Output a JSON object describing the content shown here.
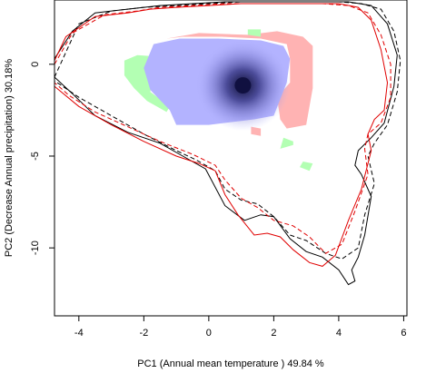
{
  "chart_data": {
    "type": "area",
    "title": "",
    "xlabel": "PC1 (Annual mean temperature ) 49.84 %",
    "ylabel": "PC2 (Decrease Annual precipitation) 30.18%",
    "xlim": [
      -4.75,
      6.1
    ],
    "ylim": [
      -13.7,
      3.5
    ],
    "x_ticks": [
      -4,
      -2,
      0,
      2,
      4,
      6
    ],
    "y_ticks": [
      0,
      -5,
      -10
    ],
    "x_tick_labels": [
      "-4",
      "-2",
      "0",
      "2",
      "4",
      "6"
    ],
    "y_tick_labels": [
      "0",
      "-5",
      "-10"
    ],
    "grid": false,
    "legend": "none",
    "colors": {
      "niche_overlap": "#b3b3ff",
      "niche_stable_core": "#101040",
      "species1_only": "#ffb3b3",
      "species2_only": "#b3ffb3",
      "env_contour_1": "#000000",
      "env_contour_2": "#e00000"
    },
    "regions": {
      "niche_overlap": [
        [
          -1.7,
          1.1
        ],
        [
          -0.9,
          1.4
        ],
        [
          0.3,
          1.4
        ],
        [
          1.6,
          1.3
        ],
        [
          2.3,
          1.0
        ],
        [
          2.5,
          0.3
        ],
        [
          2.4,
          -1.0
        ],
        [
          2.0,
          -2.8
        ],
        [
          1.4,
          -3.0
        ],
        [
          0.0,
          -3.3
        ],
        [
          -1.0,
          -3.3
        ],
        [
          -1.2,
          -2.5
        ],
        [
          -1.8,
          -1.4
        ],
        [
          -2.0,
          -0.2
        ]
      ],
      "species1_only": [
        [
          -1.3,
          1.4
        ],
        [
          -0.3,
          1.7
        ],
        [
          1.2,
          1.6
        ],
        [
          2.1,
          1.8
        ],
        [
          2.9,
          1.5
        ],
        [
          3.2,
          1.0
        ],
        [
          3.2,
          -1.3
        ],
        [
          3.0,
          -3.3
        ],
        [
          2.4,
          -3.5
        ],
        [
          2.2,
          -3.0
        ],
        [
          2.1,
          -1.8
        ],
        [
          2.5,
          -1.0
        ],
        [
          2.5,
          0.3
        ],
        [
          2.4,
          1.1
        ],
        [
          1.6,
          1.4
        ],
        [
          0.4,
          1.5
        ],
        [
          -0.8,
          1.5
        ]
      ],
      "species2_only": [
        [
          -2.6,
          0.2
        ],
        [
          -2.2,
          0.5
        ],
        [
          -1.4,
          0.4
        ],
        [
          -1.7,
          0.2
        ],
        [
          -1.8,
          -1.5
        ],
        [
          -1.2,
          -2.3
        ],
        [
          -1.3,
          -2.6
        ],
        [
          -1.9,
          -2.0
        ],
        [
          -2.3,
          -1.3
        ],
        [
          -2.6,
          -0.6
        ]
      ],
      "species2_patch_a": [
        [
          2.3,
          -4.0
        ],
        [
          2.6,
          -4.2
        ],
        [
          2.6,
          -4.4
        ],
        [
          2.2,
          -4.6
        ]
      ],
      "species2_patch_b": [
        [
          1.6,
          1.5
        ],
        [
          1.6,
          1.9
        ],
        [
          1.2,
          1.9
        ],
        [
          1.2,
          1.6
        ]
      ],
      "species2_patch_c": [
        [
          2.9,
          -5.3
        ],
        [
          3.2,
          -5.4
        ],
        [
          3.1,
          -5.8
        ],
        [
          2.8,
          -5.6
        ]
      ],
      "species1_patch_a": [
        [
          1.3,
          -3.4
        ],
        [
          1.6,
          -3.5
        ],
        [
          1.6,
          -3.9
        ],
        [
          1.3,
          -3.8
        ]
      ]
    },
    "stable_core_center": [
      1.05,
      -1.15
    ],
    "series": [
      {
        "color": "#000000",
        "dash": "solid",
        "x": [
          -4.75,
          -4.2,
          -3.5,
          -2.5,
          -1.5,
          -0.5,
          0.5,
          1.5,
          2.5,
          3.5,
          4.3,
          5.0,
          5.5,
          5.8,
          5.7,
          5.4,
          5.0,
          4.6,
          4.5,
          4.7,
          5.0,
          4.8,
          4.6,
          4.4,
          4.5,
          4.3,
          4.0,
          3.5,
          3.0,
          2.5,
          2.0,
          1.6,
          1.1,
          0.5,
          -0.1,
          -0.7,
          -1.5,
          -2.5,
          -3.5,
          -4.2,
          -4.75
        ],
        "y": [
          0.3,
          1.8,
          2.8,
          3.0,
          3.2,
          3.3,
          3.4,
          3.4,
          3.4,
          3.4,
          3.4,
          3.2,
          2.2,
          0.5,
          -1.2,
          -3.2,
          -4.0,
          -4.7,
          -5.5,
          -6.0,
          -7.2,
          -9.3,
          -10.5,
          -11.2,
          -11.8,
          -12.0,
          -11.2,
          -10.5,
          -10.2,
          -9.5,
          -8.3,
          -8.2,
          -8.5,
          -7.7,
          -5.7,
          -5.1,
          -4.3,
          -3.7,
          -2.8,
          -1.6,
          -0.7
        ]
      },
      {
        "color": "#000000",
        "dash": "dashed",
        "x": [
          -4.75,
          -4.0,
          -3.0,
          -2.0,
          -1.0,
          0.0,
          1.0,
          2.0,
          3.0,
          4.0,
          4.7,
          5.3,
          5.7,
          5.9,
          5.8,
          5.5,
          5.1,
          4.9,
          5.1,
          4.8,
          4.6,
          4.1,
          3.6,
          3.0,
          2.5,
          2.0,
          1.5,
          1.0,
          0.5,
          0.2,
          -0.4,
          -1.0,
          -2.0,
          -3.0,
          -4.0,
          -4.75
        ],
        "y": [
          -0.7,
          2.2,
          2.9,
          3.1,
          3.2,
          3.3,
          3.4,
          3.4,
          3.4,
          3.4,
          3.3,
          3.0,
          1.8,
          0.2,
          -1.5,
          -3.3,
          -4.3,
          -5.0,
          -6.5,
          -8.2,
          -10.0,
          -10.6,
          -10.3,
          -9.6,
          -9.3,
          -8.3,
          -7.6,
          -7.4,
          -6.8,
          -5.8,
          -5.2,
          -4.7,
          -3.8,
          -2.8,
          -1.8,
          -0.9
        ]
      },
      {
        "color": "#e00000",
        "dash": "solid",
        "x": [
          -4.75,
          -4.4,
          -3.5,
          -2.5,
          -1.8,
          -1.0,
          0.0,
          1.0,
          2.0,
          3.0,
          4.0,
          4.6,
          5.0,
          5.3,
          5.5,
          5.4,
          5.1,
          4.9,
          5.0,
          4.7,
          4.3,
          3.9,
          3.5,
          3.1,
          2.6,
          2.2,
          1.8,
          1.4,
          0.9,
          0.5,
          0.2,
          -0.3,
          -1.0,
          -2.0,
          -3.0,
          -4.0,
          -4.75
        ],
        "y": [
          0.2,
          1.5,
          2.6,
          2.8,
          3.0,
          3.1,
          3.2,
          3.3,
          3.3,
          3.3,
          3.3,
          3.1,
          2.4,
          0.8,
          -1.0,
          -2.5,
          -3.0,
          -3.8,
          -4.7,
          -6.8,
          -8.5,
          -10.4,
          -11.0,
          -10.8,
          -10.1,
          -9.4,
          -9.2,
          -9.3,
          -8.2,
          -7.1,
          -5.8,
          -5.4,
          -5.0,
          -4.2,
          -3.3,
          -2.3,
          -1.2
        ]
      },
      {
        "color": "#e00000",
        "dash": "dashed",
        "x": [
          -4.75,
          -4.2,
          -3.2,
          -2.2,
          -1.5,
          -0.5,
          0.5,
          1.5,
          2.5,
          3.5,
          4.3,
          4.9,
          5.3,
          5.6,
          5.6,
          5.3,
          4.9,
          4.8,
          4.9,
          4.5,
          4.1,
          3.6,
          3.1,
          2.6,
          2.0,
          1.5,
          1.0,
          0.5,
          0.2,
          -0.5,
          -1.5,
          -2.5,
          -3.5,
          -4.3,
          -4.75
        ],
        "y": [
          0.0,
          1.7,
          2.7,
          2.9,
          3.1,
          3.2,
          3.3,
          3.3,
          3.3,
          3.3,
          3.2,
          2.8,
          1.6,
          0.0,
          -1.8,
          -3.2,
          -3.8,
          -4.6,
          -6.0,
          -8.0,
          -9.8,
          -10.3,
          -9.4,
          -8.8,
          -8.5,
          -7.8,
          -7.3,
          -6.3,
          -5.5,
          -4.9,
          -4.2,
          -3.4,
          -2.6,
          -1.7,
          -1.0
        ]
      }
    ]
  }
}
